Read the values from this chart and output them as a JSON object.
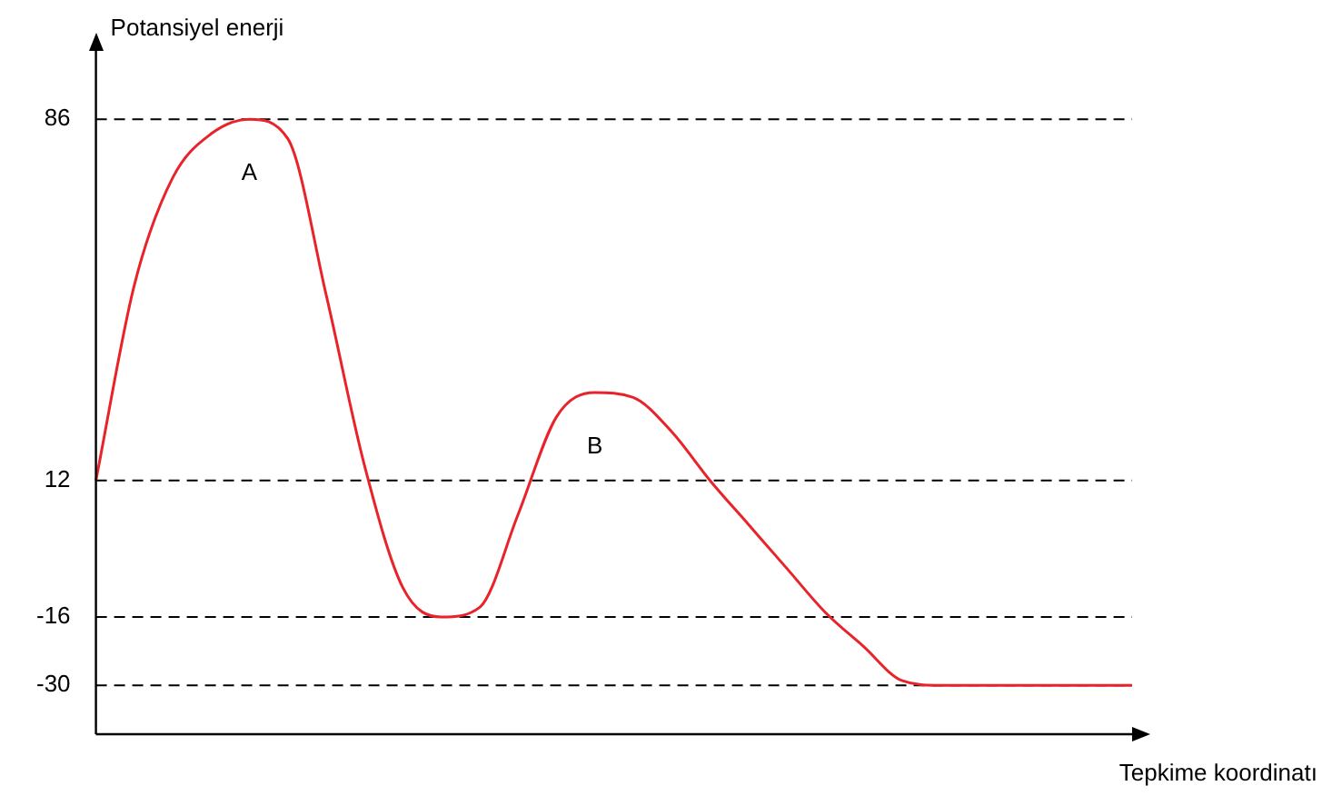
{
  "chart_data": {
    "type": "line",
    "xlabel": "Tepkime koordinatı",
    "ylabel": "Potansiyel enerji",
    "categories": [
      null,
      null,
      null,
      null,
      null,
      null,
      null,
      null,
      null,
      null,
      null,
      null,
      null,
      null,
      null,
      null,
      null,
      null,
      null,
      null,
      null,
      null,
      null,
      null,
      null,
      null,
      null,
      null
    ],
    "series": [
      {
        "color": "#e8232a",
        "values": [
          12,
          52,
          74,
          83,
          86,
          82,
          50,
          15,
          -10,
          -16,
          -14,
          5,
          25,
          30,
          29,
          22,
          12,
          3,
          -6,
          -15,
          -22,
          -29,
          -30,
          -30,
          -30,
          -30,
          -30,
          -30
        ]
      }
    ],
    "ylim": [
      -40,
      100
    ],
    "yticks": [
      86,
      12,
      -16,
      -30
    ],
    "ref_lines": [
      {
        "axis": "y",
        "value": 86,
        "color": "#000000",
        "line_style": "dashed"
      },
      {
        "axis": "y",
        "value": 12,
        "color": "#000000",
        "line_style": "dashed"
      },
      {
        "axis": "y",
        "value": -16,
        "color": "#000000",
        "line_style": "dashed"
      },
      {
        "axis": "y",
        "value": -30,
        "color": "#000000",
        "line_style": "dashed"
      }
    ],
    "annotations": [
      "A",
      "B"
    ],
    "grid": false,
    "legend": false,
    "marker": "none",
    "line_style": "solid"
  }
}
